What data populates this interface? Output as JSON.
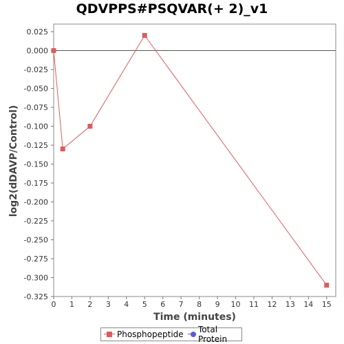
{
  "chart_data": {
    "type": "line",
    "title": "QDVPPS#PSQVAR(+ 2)_v1",
    "xlabel": "Time (minutes)",
    "ylabel": "log2(dDAVP/Control)",
    "xlim": [
      0,
      15.5
    ],
    "ylim": [
      -0.325,
      0.035
    ],
    "x_ticks": [
      0,
      1,
      2,
      3,
      4,
      5,
      6,
      7,
      8,
      9,
      10,
      11,
      12,
      13,
      14,
      15
    ],
    "x_tick_labels": [
      "0",
      "1",
      "2",
      "3",
      "4",
      "5",
      "6",
      "7",
      "8",
      "9",
      "10",
      "11",
      "12",
      "13",
      "14",
      "15"
    ],
    "y_ticks": [
      0.025,
      0.0,
      -0.025,
      -0.05,
      -0.075,
      -0.1,
      -0.125,
      -0.15,
      -0.175,
      -0.2,
      -0.225,
      -0.25,
      -0.275,
      -0.3,
      -0.325
    ],
    "y_tick_labels": [
      "0.025",
      "0.000",
      "-0.025",
      "-0.050",
      "-0.075",
      "-0.100",
      "-0.125",
      "-0.150",
      "-0.175",
      "-0.200",
      "-0.225",
      "-0.250",
      "-0.275",
      "-0.300",
      "-0.325"
    ],
    "reference_line_y": 0,
    "grid": false,
    "legend_position": "bottom-center",
    "series": [
      {
        "name": "Phosphopeptide",
        "color": "#e05a5a",
        "marker": "square",
        "points": [
          {
            "x": 0,
            "y": 0.0
          },
          {
            "x": 0.5,
            "y": -0.13
          },
          {
            "x": 2,
            "y": -0.1
          },
          {
            "x": 5,
            "y": 0.02
          },
          {
            "x": 15,
            "y": -0.31
          }
        ]
      },
      {
        "name": "Total Protein",
        "color": "#5a5ae0",
        "marker": "circle",
        "points": []
      }
    ]
  }
}
